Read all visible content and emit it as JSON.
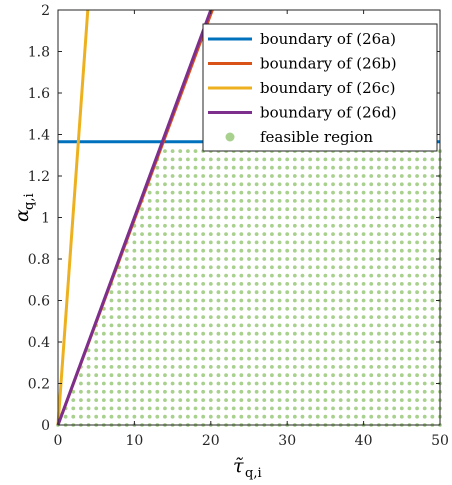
{
  "chart_data": {
    "type": "line",
    "xlabel": {
      "main": "τ̃",
      "subscript": "q,i"
    },
    "ylabel": {
      "main": "α",
      "subscript": "q,i"
    },
    "xlim": [
      0,
      50
    ],
    "ylim": [
      0,
      2
    ],
    "x_ticks": [
      0,
      10,
      20,
      30,
      40,
      50
    ],
    "y_ticks": [
      0,
      0.2,
      0.4,
      0.6,
      0.8,
      1,
      1.2,
      1.4,
      1.6,
      1.8,
      2
    ],
    "x_tick_labels": [
      "0",
      "10",
      "20",
      "30",
      "40",
      "50"
    ],
    "y_tick_labels": [
      "0",
      "0.2",
      "0.4",
      "0.6",
      "0.8",
      "1",
      "1.2",
      "1.4",
      "1.6",
      "1.8",
      "2"
    ],
    "grid": false,
    "legend_position": "top-right",
    "series": [
      {
        "name": "boundary of (26a)",
        "color": "#0072BD",
        "x": [
          0,
          50
        ],
        "y": [
          1.365,
          1.365
        ]
      },
      {
        "name": "boundary of (26b)",
        "color": "#D95319",
        "x": [
          0,
          20.2
        ],
        "y": [
          0,
          2
        ]
      },
      {
        "name": "boundary of (26c)",
        "color": "#EDB120",
        "x": [
          0,
          3.9
        ],
        "y": [
          0,
          2
        ]
      },
      {
        "name": "boundary of (26d)",
        "color": "#7E2F8E",
        "x": [
          0,
          20.0
        ],
        "y": [
          0,
          2
        ]
      }
    ],
    "feasible_region": {
      "name": "feasible region",
      "color": "#A9D18E",
      "y_max": 1.34,
      "slope_limit": 0.0993,
      "x_step": 1.0,
      "y_step": 0.04
    }
  }
}
